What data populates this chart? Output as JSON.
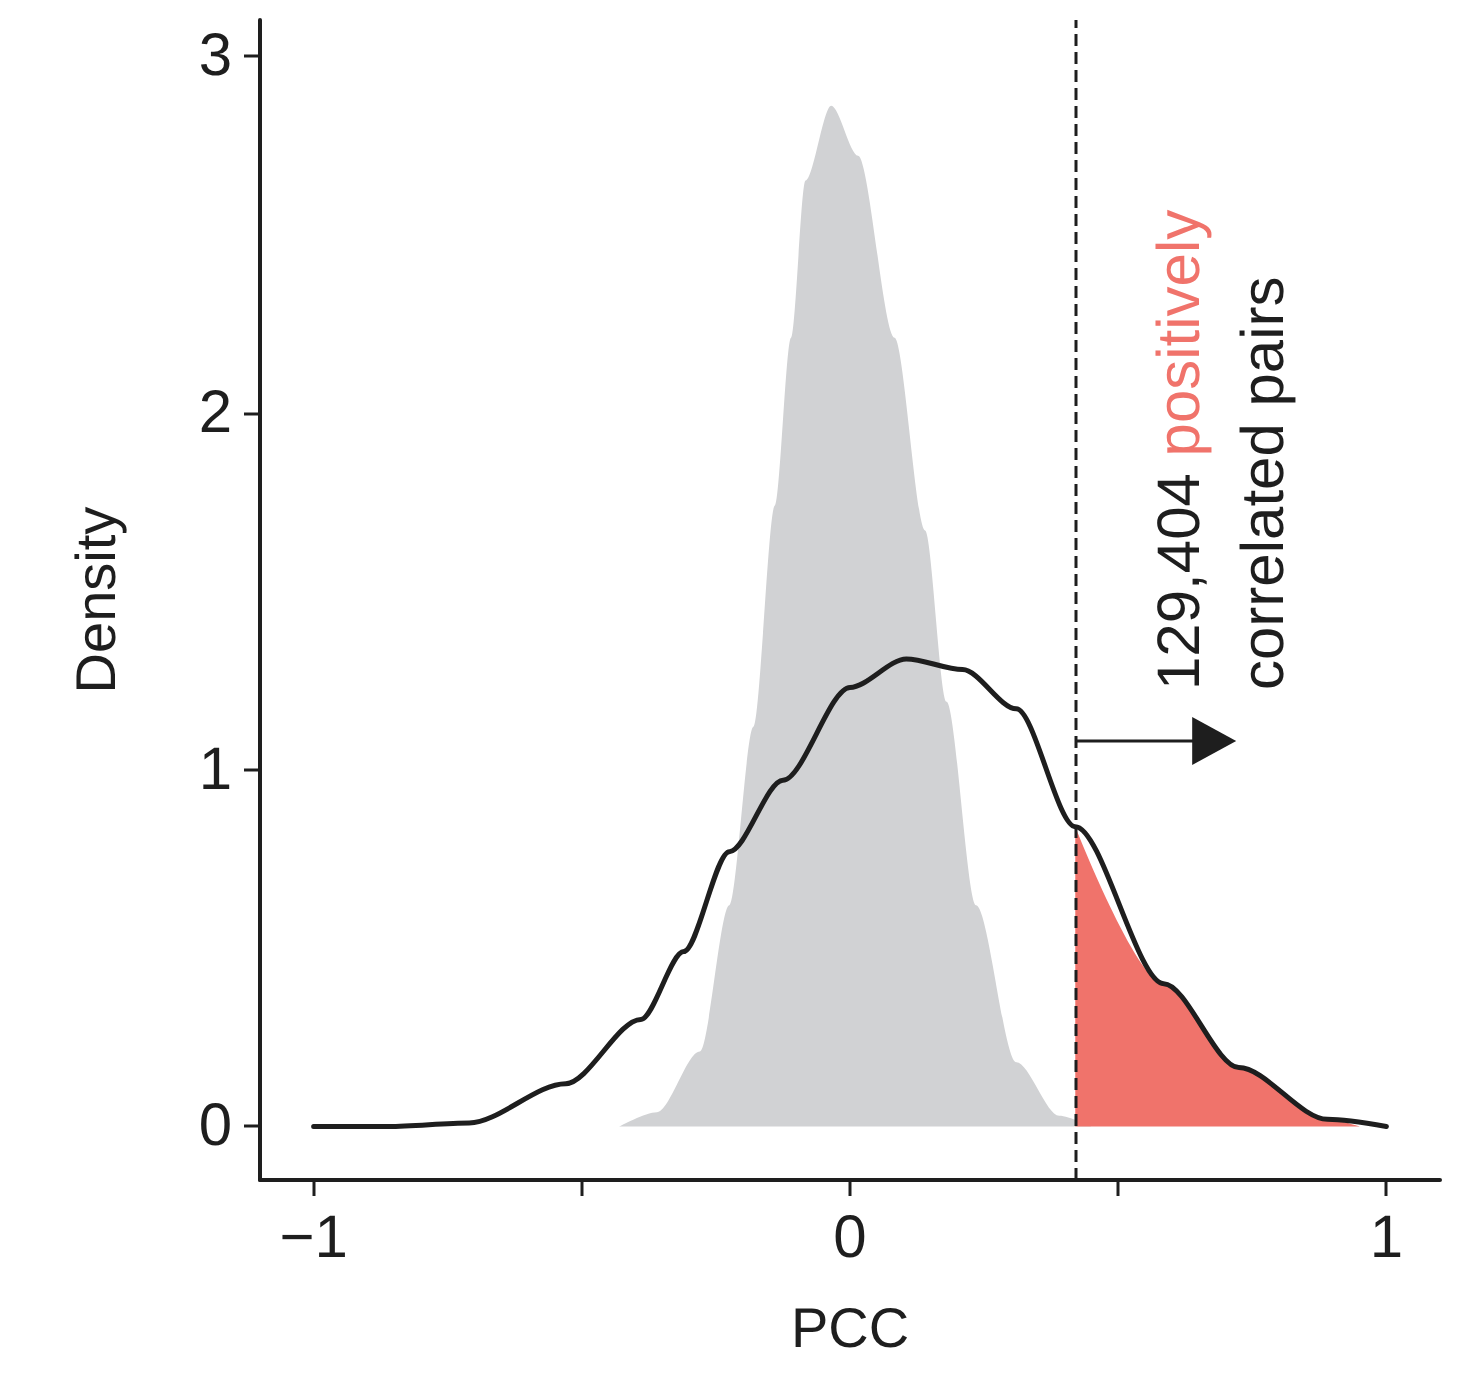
{
  "chart_data": {
    "type": "line",
    "xlabel": "PCC",
    "ylabel": "Density",
    "xlim": [
      -1.1,
      1.1
    ],
    "ylim": [
      -0.15,
      3.1
    ],
    "xticks": [
      {
        "value": -1,
        "label": "−1"
      },
      {
        "value": -0.5,
        "label": null
      },
      0,
      {
        "value": 0.5,
        "label": null
      },
      1
    ],
    "yticks": [
      0,
      1,
      2,
      3
    ],
    "grid": false,
    "marker": "none",
    "series": [
      {
        "type": "area",
        "color": "#d1d2d4",
        "x": [
          -0.43,
          -0.36,
          -0.28,
          -0.225,
          -0.18,
          -0.14,
          -0.11,
          -0.083,
          -0.035,
          0.015,
          0.083,
          0.14,
          0.18,
          0.235,
          0.31,
          0.39,
          0.45
        ],
        "values": [
          0,
          0.04,
          0.21,
          0.62,
          1.12,
          1.74,
          2.21,
          2.65,
          2.86,
          2.72,
          2.21,
          1.67,
          1.19,
          0.62,
          0.18,
          0.03,
          0
        ]
      },
      {
        "type": "area",
        "color": "#f0736b",
        "x": [
          0.42,
          0.585,
          0.725,
          0.89,
          0.95
        ],
        "values": [
          0.84,
          0.4,
          0.165,
          0.02,
          0
        ]
      },
      {
        "color": "#1e1e1e",
        "x": [
          -1,
          -0.86,
          -0.71,
          -0.53,
          -0.39,
          -0.31,
          -0.225,
          -0.125,
          0,
          0.105,
          0.21,
          0.31,
          0.42,
          0.585,
          0.725,
          0.89,
          1
        ],
        "values": [
          0,
          0,
          0.01,
          0.12,
          0.3,
          0.49,
          0.77,
          0.97,
          1.23,
          1.31,
          1.28,
          1.17,
          0.84,
          0.4,
          0.165,
          0.02,
          0
        ]
      }
    ],
    "ref_lines": [
      {
        "axis": "x",
        "value": 0.42,
        "line_style": "dashed",
        "color": "#1e1e1e"
      }
    ],
    "annotations": [
      "129,404 ",
      "positively",
      "correlated pairs"
    ]
  }
}
